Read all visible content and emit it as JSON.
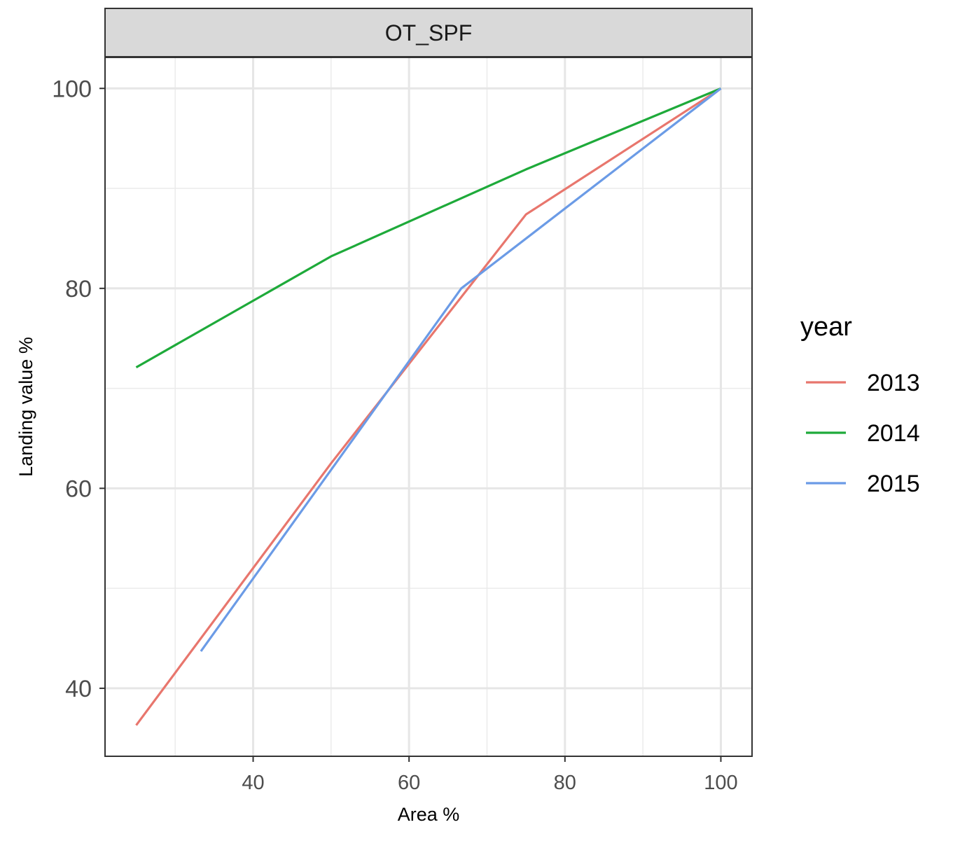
{
  "chart_data": {
    "type": "line",
    "facet_label": "OT_SPF",
    "xlabel": "Area %",
    "ylabel": "Landing value %",
    "xlim": [
      21,
      104
    ],
    "ylim": [
      33.2,
      103.1
    ],
    "x_ticks": [
      40,
      60,
      80,
      100
    ],
    "y_ticks": [
      40,
      60,
      80,
      100
    ],
    "x_minor_ticks": [
      30,
      50,
      70,
      90
    ],
    "y_minor_ticks": [
      50,
      70,
      90
    ],
    "grid": true,
    "legend_title": "year",
    "legend_position": "right",
    "series": [
      {
        "name": "2013",
        "color": "#E8766D",
        "x": [
          25,
          50,
          75,
          100
        ],
        "y": [
          36.3,
          62.5,
          87.4,
          100
        ]
      },
      {
        "name": "2014",
        "color": "#1EAA3A",
        "x": [
          25,
          50,
          75,
          100
        ],
        "y": [
          72.1,
          83.2,
          91.9,
          100
        ]
      },
      {
        "name": "2015",
        "color": "#6B9BE6",
        "x": [
          33.3,
          66.7,
          100
        ],
        "y": [
          43.7,
          80.0,
          100
        ]
      }
    ]
  }
}
